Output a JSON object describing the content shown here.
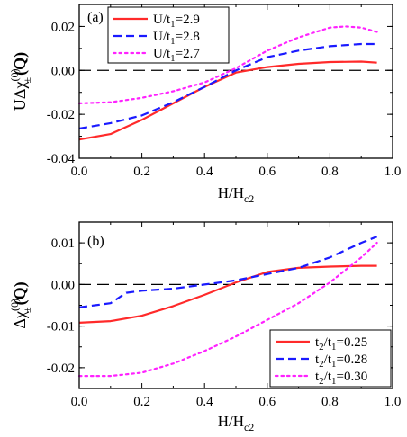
{
  "chart_data": [
    {
      "type": "line",
      "panel_label": "(a)",
      "xlabel_main": "H/H",
      "xlabel_sub": "c2",
      "ylabel_parts": {
        "prefix": "UΔχ",
        "sub": "±",
        "sup": "(0)",
        "arg": "(Q)"
      },
      "xlim": [
        0,
        1.0
      ],
      "ylim": [
        -0.04,
        0.03
      ],
      "xticks": [
        "0.0",
        "0.2",
        "0.4",
        "0.6",
        "0.8",
        "1.0"
      ],
      "yticks": [
        "-0.04",
        "-0.02",
        "0.00",
        "0.02"
      ],
      "ytick_values": [
        -0.04,
        -0.02,
        0.0,
        0.02
      ],
      "zero_line": true,
      "legend_position": "top-left",
      "series": [
        {
          "name": "U/t₁=2.9",
          "legend": {
            "lhs": "U/t",
            "sub": "1",
            "rhs": "=2.9"
          },
          "color": "#ff2a2a",
          "dash": "solid",
          "x": [
            0.0,
            0.1,
            0.2,
            0.3,
            0.4,
            0.5,
            0.6,
            0.7,
            0.8,
            0.9,
            0.95
          ],
          "y": [
            -0.0315,
            -0.029,
            -0.0225,
            -0.015,
            -0.0075,
            -0.001,
            0.0015,
            0.003,
            0.0038,
            0.004,
            0.0035
          ]
        },
        {
          "name": "U/t₁=2.8",
          "legend": {
            "lhs": "U/t",
            "sub": "1",
            "rhs": "=2.8"
          },
          "color": "#1a1aff",
          "dash": "dashed",
          "x": [
            0.0,
            0.1,
            0.2,
            0.3,
            0.4,
            0.5,
            0.6,
            0.7,
            0.8,
            0.9,
            0.95
          ],
          "y": [
            -0.0265,
            -0.024,
            -0.0205,
            -0.0145,
            -0.0075,
            0.0,
            0.006,
            0.009,
            0.011,
            0.012,
            0.012
          ]
        },
        {
          "name": "U/t₁=2.7",
          "legend": {
            "lhs": "U/t",
            "sub": "1",
            "rhs": "=2.7"
          },
          "color": "#ff22ff",
          "dash": "dotted",
          "x": [
            0.0,
            0.1,
            0.2,
            0.3,
            0.4,
            0.5,
            0.6,
            0.7,
            0.8,
            0.85,
            0.9,
            0.95
          ],
          "y": [
            -0.015,
            -0.0145,
            -0.0125,
            -0.0095,
            -0.0055,
            0.001,
            0.009,
            0.015,
            0.0195,
            0.02,
            0.0195,
            0.0175
          ]
        }
      ]
    },
    {
      "type": "line",
      "panel_label": "(b)",
      "xlabel_main": "H/H",
      "xlabel_sub": "c2",
      "ylabel_parts": {
        "prefix": "Δχ",
        "sub": "±",
        "sup": "(0)",
        "arg": "(Q)"
      },
      "xlim": [
        0,
        1.0
      ],
      "ylim": [
        -0.025,
        0.015
      ],
      "xticks": [
        "0.0",
        "0.2",
        "0.4",
        "0.6",
        "0.8",
        "1.0"
      ],
      "yticks": [
        "-0.02",
        "-0.01",
        "0.00",
        "0.01"
      ],
      "ytick_values": [
        -0.02,
        -0.01,
        0.0,
        0.01
      ],
      "zero_line": true,
      "legend_position": "bottom-right",
      "series": [
        {
          "name": "t₂/t₁=0.25",
          "legend": {
            "lhs": "t",
            "sub1": "2",
            "mid": "/t",
            "sub": "1",
            "rhs": "=0.25"
          },
          "color": "#ff2a2a",
          "dash": "solid",
          "x": [
            0.0,
            0.1,
            0.2,
            0.3,
            0.4,
            0.5,
            0.6,
            0.7,
            0.8,
            0.9,
            0.95
          ],
          "y": [
            -0.0092,
            -0.0088,
            -0.0075,
            -0.0052,
            -0.0025,
            0.0005,
            0.003,
            0.004,
            0.0043,
            0.0045,
            0.0045
          ]
        },
        {
          "name": "t₂/t₁=0.28",
          "legend": {
            "lhs": "t",
            "sub1": "2",
            "mid": "/t",
            "sub": "1",
            "rhs": "=0.28"
          },
          "color": "#1a1aff",
          "dash": "dashed",
          "x": [
            0.0,
            0.05,
            0.1,
            0.15,
            0.2,
            0.3,
            0.4,
            0.5,
            0.6,
            0.7,
            0.8,
            0.9,
            0.95
          ],
          "y": [
            -0.0055,
            -0.005,
            -0.0045,
            -0.002,
            -0.0015,
            -0.001,
            0.0,
            0.001,
            0.0025,
            0.004,
            0.0065,
            0.01,
            0.0115
          ]
        },
        {
          "name": "t₂/t₁=0.30",
          "legend": {
            "lhs": "t",
            "sub1": "2",
            "mid": "/t",
            "sub": "1",
            "rhs": "=0.30"
          },
          "color": "#ff22ff",
          "dash": "dotted",
          "x": [
            0.0,
            0.1,
            0.2,
            0.3,
            0.4,
            0.5,
            0.6,
            0.7,
            0.8,
            0.9,
            0.95
          ],
          "y": [
            -0.022,
            -0.022,
            -0.0212,
            -0.019,
            -0.016,
            -0.0125,
            -0.0085,
            -0.0045,
            0.0005,
            0.0065,
            0.01
          ]
        }
      ]
    }
  ]
}
